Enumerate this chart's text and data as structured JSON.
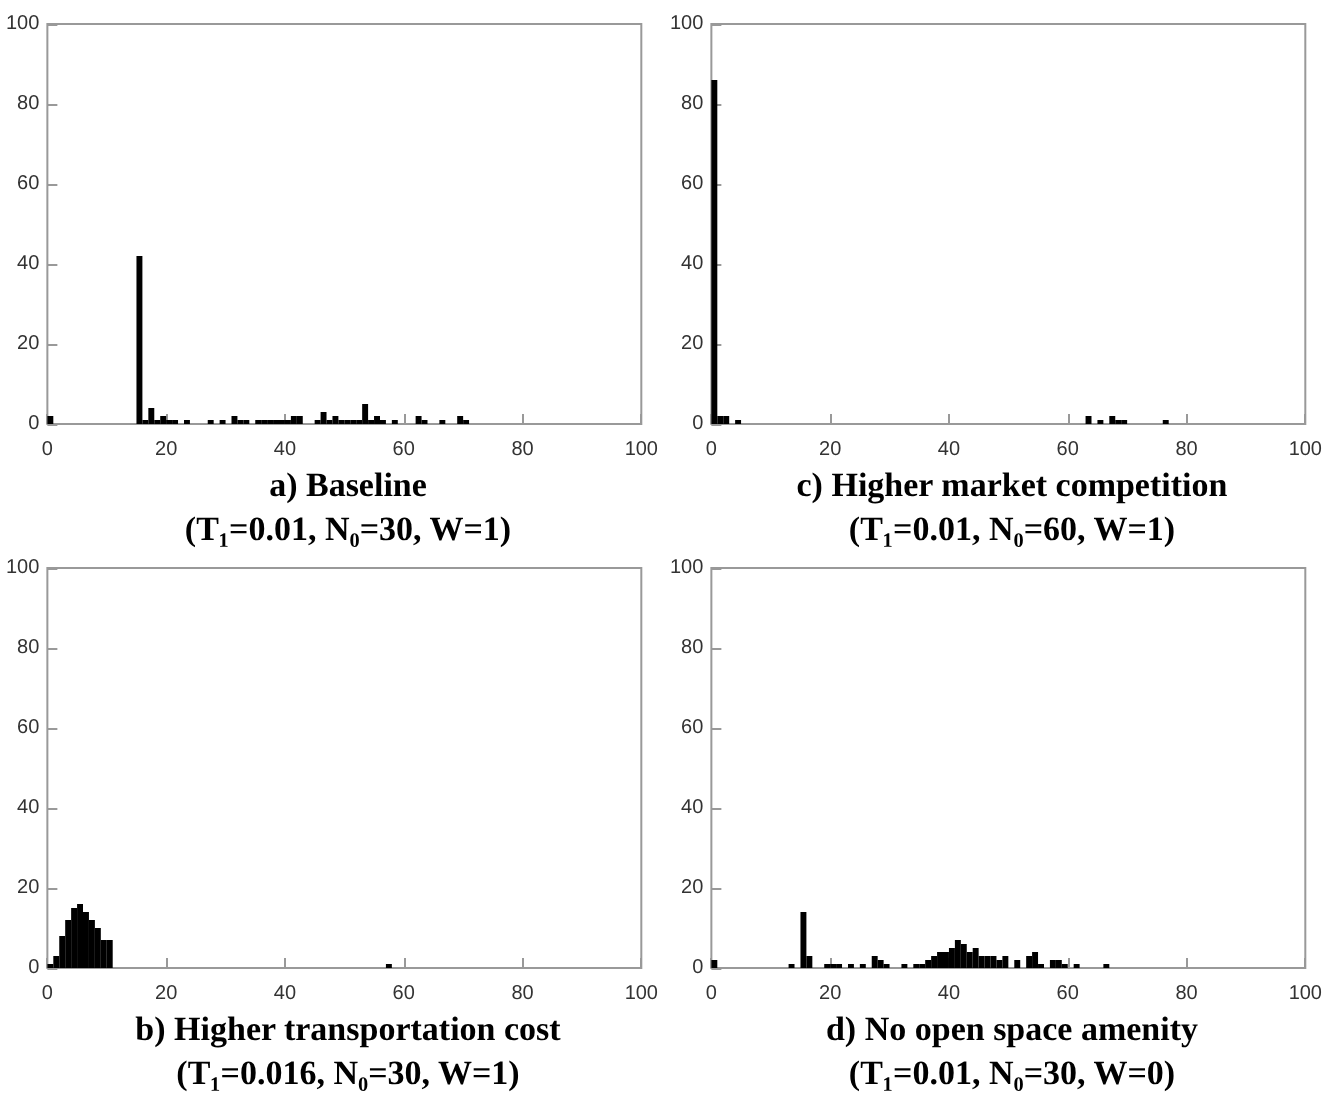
{
  "chart_data": [
    {
      "type": "histogram",
      "title": "a)  Baseline",
      "subtitle": "(T₁=0.01, N₀=30, W=1)",
      "color": "#000000",
      "grid": false,
      "xlim": [
        0,
        100
      ],
      "ylim": [
        0,
        100
      ],
      "xticks": [
        0,
        20,
        40,
        60,
        80,
        100
      ],
      "yticks": [
        0,
        20,
        40,
        60,
        80,
        100
      ],
      "bins": [
        0,
        1,
        15,
        16,
        17,
        18,
        19,
        20,
        21,
        22,
        23,
        24,
        27,
        28,
        29,
        30,
        31,
        32,
        33,
        34,
        35,
        36,
        37,
        38,
        39,
        40,
        41,
        42,
        43,
        45,
        46,
        47,
        48,
        49,
        50,
        51,
        52,
        53,
        54,
        55,
        56,
        57,
        58,
        59,
        62,
        63,
        64,
        66,
        67,
        69,
        70,
        71
      ],
      "values": [
        2,
        0,
        42,
        1,
        4,
        1,
        2,
        1,
        1,
        0,
        1,
        0,
        1,
        0,
        1,
        0,
        2,
        1,
        1,
        0,
        1,
        1,
        1,
        1,
        1,
        1,
        2,
        2,
        0,
        1,
        3,
        1,
        2,
        1,
        1,
        1,
        1,
        5,
        1,
        2,
        1,
        0,
        1,
        0,
        2,
        1,
        0,
        1,
        0,
        2,
        1
      ]
    },
    {
      "type": "histogram",
      "title": "c)  Higher market competition",
      "subtitle": "(T₁=0.01, N₀=60, W=1)",
      "color": "#000000",
      "grid": false,
      "xlim": [
        0,
        100
      ],
      "ylim": [
        0,
        100
      ],
      "xticks": [
        0,
        20,
        40,
        60,
        80,
        100
      ],
      "yticks": [
        0,
        20,
        40,
        60,
        80,
        100
      ],
      "bins": [
        0,
        1,
        2,
        3,
        4,
        5,
        63,
        64,
        65,
        66,
        67,
        68,
        69,
        70,
        76,
        77
      ],
      "values": [
        86,
        2,
        2,
        0,
        1,
        0,
        2,
        0,
        1,
        0,
        2,
        1,
        1,
        0,
        1
      ]
    },
    {
      "type": "histogram",
      "title": "b)  Higher transportation cost",
      "subtitle": "(T₁=0.016, N₀=30, W=1)",
      "color": "#000000",
      "grid": false,
      "xlim": [
        0,
        100
      ],
      "ylim": [
        0,
        100
      ],
      "xticks": [
        0,
        20,
        40,
        60,
        80,
        100
      ],
      "yticks": [
        0,
        20,
        40,
        60,
        80,
        100
      ],
      "bins": [
        0,
        1,
        2,
        3,
        4,
        5,
        6,
        7,
        8,
        9,
        10,
        11,
        57,
        58
      ],
      "values": [
        1,
        3,
        8,
        12,
        15,
        16,
        14,
        12,
        10,
        7,
        7,
        0,
        1
      ]
    },
    {
      "type": "histogram",
      "title": "d)  No open space amenity",
      "subtitle": "(T₁=0.01, N₀=30, W=0)",
      "color": "#000000",
      "grid": false,
      "xlim": [
        0,
        100
      ],
      "ylim": [
        0,
        100
      ],
      "xticks": [
        0,
        20,
        40,
        60,
        80,
        100
      ],
      "yticks": [
        0,
        20,
        40,
        60,
        80,
        100
      ],
      "bins": [
        0,
        1,
        13,
        14,
        15,
        16,
        17,
        19,
        20,
        21,
        22,
        23,
        24,
        25,
        26,
        27,
        28,
        29,
        30,
        32,
        33,
        34,
        35,
        36,
        37,
        38,
        39,
        40,
        41,
        42,
        43,
        44,
        45,
        46,
        47,
        48,
        49,
        50,
        51,
        52,
        53,
        54,
        55,
        56,
        57,
        58,
        59,
        60,
        61,
        62,
        66,
        67
      ],
      "values": [
        2,
        0,
        1,
        0,
        14,
        3,
        0,
        1,
        1,
        1,
        0,
        1,
        0,
        1,
        0,
        3,
        2,
        1,
        0,
        1,
        0,
        1,
        1,
        2,
        3,
        4,
        4,
        5,
        7,
        6,
        4,
        5,
        3,
        3,
        3,
        2,
        3,
        0,
        2,
        0,
        3,
        4,
        1,
        0,
        2,
        2,
        1,
        0,
        1,
        0,
        1
      ]
    }
  ]
}
